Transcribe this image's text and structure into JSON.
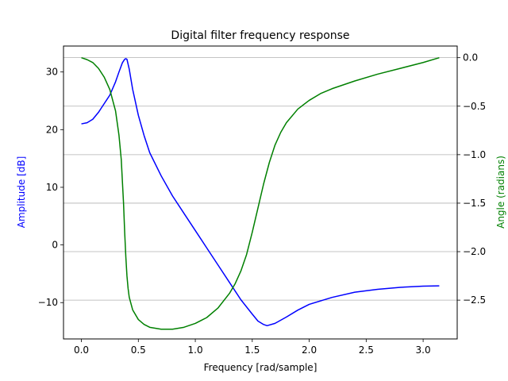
{
  "chart_data": {
    "type": "line",
    "title": "Digital filter frequency response",
    "xlabel": "Frequency [rad/sample]",
    "ylabel": "Amplitude [dB]",
    "y2label": "Angle (radians)",
    "xlim": [
      -0.157,
      3.299
    ],
    "ylim": [
      -16.3,
      34.5
    ],
    "y2lim": [
      -2.9,
      0.12
    ],
    "x_ticks": [
      "0.0",
      "0.5",
      "1.0",
      "1.5",
      "2.0",
      "2.5",
      "3.0"
    ],
    "y_ticks": [
      "−10",
      "0",
      "10",
      "20",
      "30"
    ],
    "y2_ticks": [
      "−2.5",
      "−2.0",
      "−1.5",
      "−1.0",
      "−0.5",
      "0.0"
    ],
    "grid": "right-axis horizontal",
    "colors": {
      "amplitude": "#0000ff",
      "angle": "#008000",
      "grid": "#b0b0b0",
      "axis": "#000000"
    },
    "series": [
      {
        "key": "amplitude",
        "axis": "left",
        "x": [
          0.0,
          0.05,
          0.1,
          0.15,
          0.2,
          0.25,
          0.3,
          0.33,
          0.36,
          0.38,
          0.39,
          0.4,
          0.42,
          0.45,
          0.5,
          0.55,
          0.6,
          0.7,
          0.8,
          0.9,
          1.0,
          1.1,
          1.2,
          1.3,
          1.4,
          1.5,
          1.55,
          1.6,
          1.63,
          1.7,
          1.8,
          1.9,
          2.0,
          2.2,
          2.4,
          2.6,
          2.8,
          3.0,
          3.1416
        ],
        "y": [
          21.0,
          21.2,
          21.8,
          23.0,
          24.5,
          26.0,
          28.3,
          30.0,
          31.6,
          32.2,
          32.3,
          32.2,
          30.5,
          27.0,
          22.5,
          19.0,
          16.0,
          12.0,
          8.5,
          5.5,
          2.5,
          -0.5,
          -3.5,
          -6.5,
          -9.5,
          -12.0,
          -13.2,
          -13.8,
          -14.0,
          -13.6,
          -12.5,
          -11.3,
          -10.3,
          -9.1,
          -8.2,
          -7.7,
          -7.35,
          -7.15,
          -7.1
        ]
      },
      {
        "key": "angle",
        "axis": "right",
        "x": [
          0.0,
          0.05,
          0.1,
          0.15,
          0.2,
          0.25,
          0.3,
          0.33,
          0.35,
          0.37,
          0.38,
          0.39,
          0.4,
          0.41,
          0.42,
          0.45,
          0.5,
          0.55,
          0.6,
          0.7,
          0.8,
          0.9,
          1.0,
          1.1,
          1.2,
          1.3,
          1.35,
          1.4,
          1.45,
          1.5,
          1.55,
          1.6,
          1.65,
          1.7,
          1.75,
          1.8,
          1.9,
          2.0,
          2.1,
          2.2,
          2.4,
          2.6,
          2.8,
          3.0,
          3.1416
        ],
        "y": [
          0.0,
          -0.02,
          -0.05,
          -0.11,
          -0.2,
          -0.33,
          -0.55,
          -0.8,
          -1.05,
          -1.5,
          -1.8,
          -2.05,
          -2.25,
          -2.38,
          -2.47,
          -2.6,
          -2.7,
          -2.75,
          -2.78,
          -2.8,
          -2.8,
          -2.78,
          -2.74,
          -2.68,
          -2.58,
          -2.43,
          -2.33,
          -2.2,
          -2.03,
          -1.8,
          -1.55,
          -1.3,
          -1.08,
          -0.9,
          -0.77,
          -0.67,
          -0.53,
          -0.44,
          -0.37,
          -0.32,
          -0.24,
          -0.17,
          -0.11,
          -0.05,
          0.0
        ]
      }
    ]
  }
}
